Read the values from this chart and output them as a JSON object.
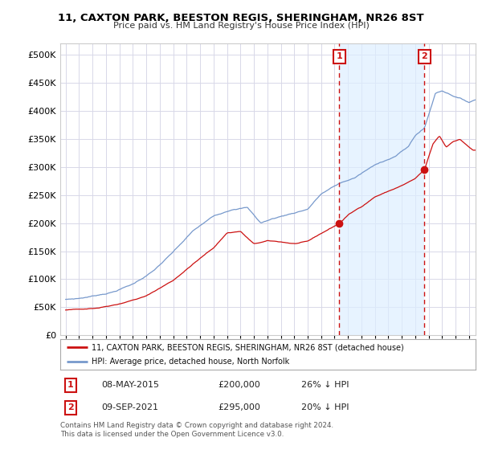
{
  "title": "11, CAXTON PARK, BEESTON REGIS, SHERINGHAM, NR26 8ST",
  "subtitle": "Price paid vs. HM Land Registry's House Price Index (HPI)",
  "legend_property": "11, CAXTON PARK, BEESTON REGIS, SHERINGHAM, NR26 8ST (detached house)",
  "legend_hpi": "HPI: Average price, detached house, North Norfolk",
  "sale1_label": "1",
  "sale1_date": "08-MAY-2015",
  "sale1_price": "£200,000",
  "sale1_note": "26% ↓ HPI",
  "sale2_label": "2",
  "sale2_date": "09-SEP-2021",
  "sale2_price": "£295,000",
  "sale2_note": "20% ↓ HPI",
  "footer": "Contains HM Land Registry data © Crown copyright and database right 2024.\nThis data is licensed under the Open Government Licence v3.0.",
  "ylim": [
    0,
    520000
  ],
  "yticks": [
    0,
    50000,
    100000,
    150000,
    200000,
    250000,
    300000,
    350000,
    400000,
    450000,
    500000
  ],
  "background_color": "#ffffff",
  "grid_color": "#d8d8e8",
  "hpi_color": "#7799cc",
  "hpi_fill_color": "#ddeeff",
  "property_color": "#cc1111",
  "sale_marker_color": "#cc1111",
  "sale1_x": 2015.36,
  "sale1_y": 200000,
  "sale2_x": 2021.69,
  "sale2_y": 295000,
  "xlim_left": 1994.6,
  "xlim_right": 2025.5
}
